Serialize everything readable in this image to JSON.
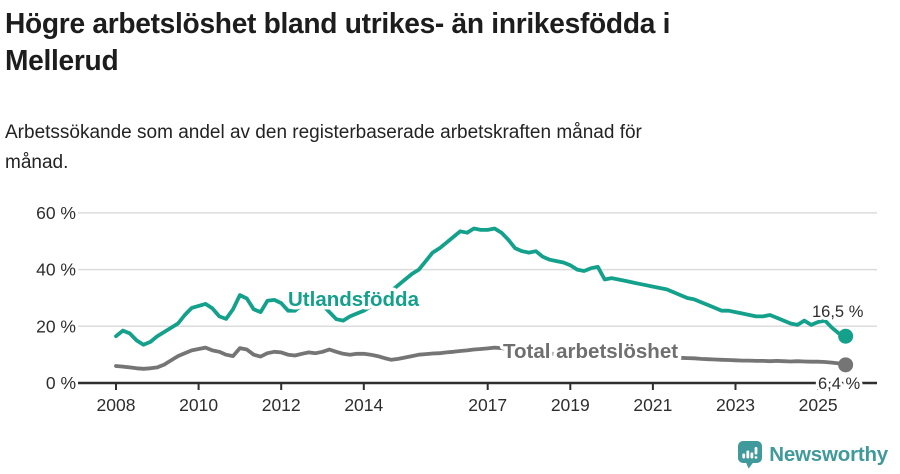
{
  "chart_data": {
    "type": "line",
    "title": "Högre arbetslöshet bland utrikes- än inrikesfödda i\nMellerud",
    "subtitle": "Arbetssökande som andel av den registerbaserade arbetskraften månad för\nmånad.",
    "unit": "%",
    "x_start": 2008.0,
    "x_step_years": 0.166667,
    "ylim": [
      0,
      65
    ],
    "grid": true,
    "legend_position": "inline-labels",
    "x_ticks": [
      {
        "year": 2008,
        "label": "2008"
      },
      {
        "year": 2010,
        "label": "2010"
      },
      {
        "year": 2012,
        "label": "2012"
      },
      {
        "year": 2014,
        "label": "2014"
      },
      {
        "year": 2017,
        "label": "2017"
      },
      {
        "year": 2019,
        "label": "2019"
      },
      {
        "year": 2021,
        "label": "2021"
      },
      {
        "year": 2023,
        "label": "2023"
      },
      {
        "year": 2025,
        "label": "2025"
      }
    ],
    "y_ticks": [
      {
        "value": 0,
        "label": "0 %"
      },
      {
        "value": 20,
        "label": "20 %"
      },
      {
        "value": 40,
        "label": "40 %"
      },
      {
        "value": 60,
        "label": "60 %"
      }
    ],
    "series": [
      {
        "name": "Utlandsfödda",
        "color": "#14a18c",
        "label_color": "#14a18c",
        "end_label": "16,5 %",
        "end_value": 16.5,
        "values": [
          16.5,
          18.5,
          17.5,
          15.0,
          13.5,
          14.5,
          16.5,
          18.0,
          19.5,
          21.0,
          24.0,
          26.5,
          27.2,
          27.9,
          26.3,
          23.5,
          22.6,
          26.0,
          31.0,
          29.8,
          26.0,
          25.0,
          29.0,
          29.3,
          28.2,
          25.5,
          25.5,
          27.5,
          27.2,
          27.2,
          27.5,
          25.0,
          22.5,
          22.0,
          23.5,
          24.5,
          25.5,
          27.0,
          28.5,
          30.5,
          32.5,
          34.5,
          36.5,
          38.5,
          40.0,
          43.0,
          46.0,
          47.5,
          49.5,
          51.5,
          53.5,
          53.0,
          54.5,
          54.0,
          54.0,
          54.5,
          53.0,
          50.5,
          47.5,
          46.5,
          46.0,
          46.5,
          44.5,
          43.5,
          43.0,
          42.5,
          41.5,
          40.0,
          39.5,
          40.5,
          41.0,
          36.5,
          37.0,
          36.5,
          36.0,
          35.5,
          35.0,
          34.5,
          34.0,
          33.5,
          33.0,
          32.0,
          31.0,
          30.0,
          29.5,
          28.5,
          27.5,
          26.5,
          25.5,
          25.5,
          25.0,
          24.5,
          24.0,
          23.5,
          23.5,
          24.0,
          23.0,
          22.0,
          21.0,
          20.5,
          22.0,
          20.5,
          21.5,
          22.0,
          19.5,
          17.5,
          16.5
        ]
      },
      {
        "name": "Total arbetslöshet",
        "color": "#757575",
        "label_color": "#6f6f6f",
        "end_label": "6,4 %",
        "end_value": 6.4,
        "values": [
          6.0,
          5.8,
          5.5,
          5.2,
          5.0,
          5.2,
          5.5,
          6.5,
          8.0,
          9.5,
          10.5,
          11.5,
          12.0,
          12.5,
          11.5,
          11.0,
          10.0,
          9.5,
          12.3,
          11.8,
          10.0,
          9.3,
          10.5,
          11.0,
          10.8,
          10.0,
          9.7,
          10.3,
          10.8,
          10.5,
          11.0,
          11.8,
          11.0,
          10.3,
          10.0,
          10.3,
          10.3,
          10.0,
          9.5,
          8.8,
          8.2,
          8.5,
          9.0,
          9.5,
          10.0,
          10.2,
          10.4,
          10.5,
          10.8,
          11.0,
          11.3,
          11.5,
          11.8,
          12.0,
          12.2,
          12.5,
          12.3,
          12.0,
          11.6,
          11.3,
          11.0,
          10.8,
          10.6,
          10.4,
          10.2,
          10.0,
          9.8,
          9.7,
          9.6,
          9.5,
          9.5,
          9.6,
          9.8,
          10.0,
          10.2,
          10.0,
          9.8,
          9.6,
          9.4,
          9.2,
          9.0,
          8.9,
          8.9,
          8.8,
          8.7,
          8.5,
          8.4,
          8.3,
          8.2,
          8.1,
          8.0,
          7.9,
          7.9,
          7.8,
          7.8,
          7.7,
          7.8,
          7.7,
          7.6,
          7.7,
          7.6,
          7.5,
          7.5,
          7.4,
          7.2,
          6.9,
          6.4
        ]
      }
    ]
  },
  "colors": {
    "teal": "#14a18c",
    "gray": "#757575",
    "grid": "#dcdcdc",
    "axis": "#2f2f2f",
    "tick_text": "#2e2e2e",
    "logo_teal": "#40999a"
  },
  "footer": {
    "brand": "Newsworthy"
  }
}
